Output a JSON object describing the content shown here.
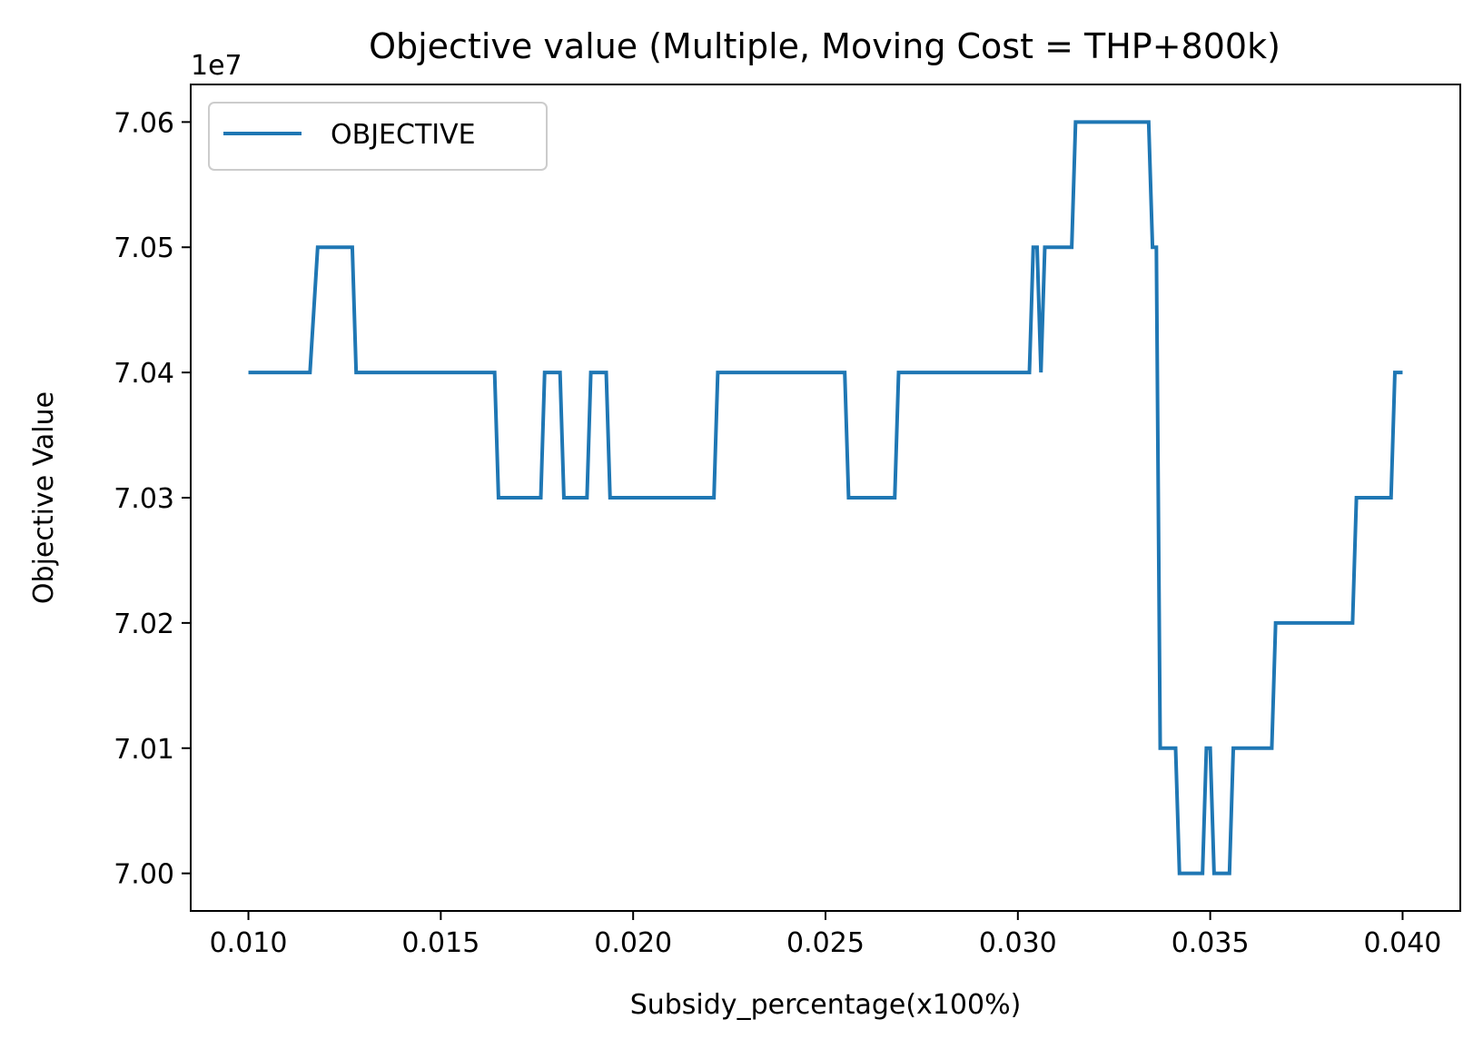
{
  "chart_data": {
    "type": "line",
    "title": "Objective value (Multiple, Moving Cost = THP+800k)",
    "xlabel": "Subsidy_percentage(x100%)",
    "ylabel": "Objective Value",
    "y_offset_label": "1e7",
    "xlim": [
      0.0085,
      0.0415
    ],
    "ylim": [
      69970000,
      70630000
    ],
    "x_ticks": [
      0.01,
      0.015,
      0.02,
      0.025,
      0.03,
      0.035,
      0.04
    ],
    "x_tick_labels": [
      "0.010",
      "0.015",
      "0.020",
      "0.025",
      "0.030",
      "0.035",
      "0.040"
    ],
    "y_ticks": [
      70000000,
      70100000,
      70200000,
      70300000,
      70400000,
      70500000,
      70600000
    ],
    "y_tick_labels": [
      "7.00",
      "7.01",
      "7.02",
      "7.03",
      "7.04",
      "7.05",
      "7.06"
    ],
    "grid": false,
    "legend_position": "upper-left",
    "colors": {
      "series": "#1f77b4",
      "frame": "#000000",
      "legend_border": "#cccccc"
    },
    "series": [
      {
        "name": "OBJECTIVE",
        "x": [
          0.01,
          0.0116,
          0.0118,
          0.0127,
          0.0128,
          0.0164,
          0.0165,
          0.0176,
          0.0177,
          0.0181,
          0.0182,
          0.0188,
          0.0189,
          0.0193,
          0.0194,
          0.0221,
          0.0222,
          0.0255,
          0.0256,
          0.0268,
          0.0269,
          0.0303,
          0.0304,
          0.0305,
          0.0306,
          0.0307,
          0.0314,
          0.0315,
          0.0334,
          0.0335,
          0.0336,
          0.0337,
          0.0338,
          0.0341,
          0.0342,
          0.0348,
          0.0349,
          0.035,
          0.0351,
          0.0355,
          0.0356,
          0.0366,
          0.0367,
          0.0387,
          0.0388,
          0.0397,
          0.0398,
          0.04
        ],
        "values": [
          70400000,
          70400000,
          70500000,
          70500000,
          70400000,
          70400000,
          70300000,
          70300000,
          70400000,
          70400000,
          70300000,
          70300000,
          70400000,
          70400000,
          70300000,
          70300000,
          70400000,
          70400000,
          70300000,
          70300000,
          70400000,
          70400000,
          70500000,
          70500000,
          70400000,
          70500000,
          70500000,
          70600000,
          70600000,
          70500000,
          70500000,
          70100000,
          70100000,
          70100000,
          70000000,
          70000000,
          70100000,
          70100000,
          70000000,
          70000000,
          70100000,
          70100000,
          70200000,
          70200000,
          70300000,
          70300000,
          70400000,
          70400000
        ]
      }
    ]
  }
}
